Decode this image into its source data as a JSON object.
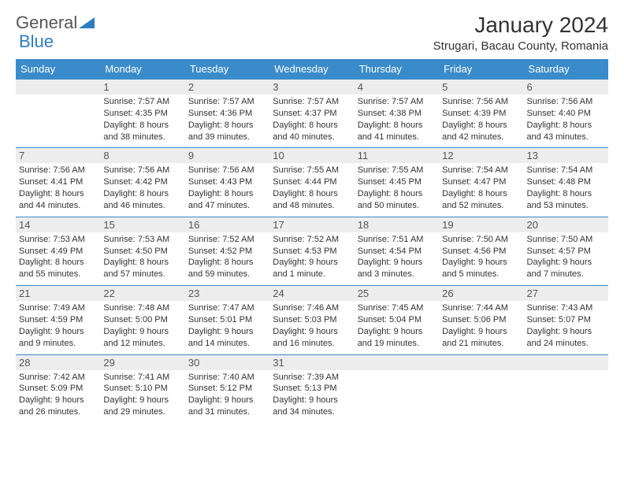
{
  "logo": {
    "text_general": "General",
    "text_blue": "Blue"
  },
  "title": "January 2024",
  "location": "Strugari, Bacau County, Romania",
  "colors": {
    "header_bg": "#3a8bc9",
    "header_text": "#ffffff",
    "daynum_bg": "#ededed",
    "row_border": "#3a8bc9",
    "logo_blue": "#2e7cc0"
  },
  "weekdays": [
    "Sunday",
    "Monday",
    "Tuesday",
    "Wednesday",
    "Thursday",
    "Friday",
    "Saturday"
  ],
  "weeks": [
    [
      null,
      {
        "n": "1",
        "sunrise": "Sunrise: 7:57 AM",
        "sunset": "Sunset: 4:35 PM",
        "daylight": "Daylight: 8 hours and 38 minutes."
      },
      {
        "n": "2",
        "sunrise": "Sunrise: 7:57 AM",
        "sunset": "Sunset: 4:36 PM",
        "daylight": "Daylight: 8 hours and 39 minutes."
      },
      {
        "n": "3",
        "sunrise": "Sunrise: 7:57 AM",
        "sunset": "Sunset: 4:37 PM",
        "daylight": "Daylight: 8 hours and 40 minutes."
      },
      {
        "n": "4",
        "sunrise": "Sunrise: 7:57 AM",
        "sunset": "Sunset: 4:38 PM",
        "daylight": "Daylight: 8 hours and 41 minutes."
      },
      {
        "n": "5",
        "sunrise": "Sunrise: 7:56 AM",
        "sunset": "Sunset: 4:39 PM",
        "daylight": "Daylight: 8 hours and 42 minutes."
      },
      {
        "n": "6",
        "sunrise": "Sunrise: 7:56 AM",
        "sunset": "Sunset: 4:40 PM",
        "daylight": "Daylight: 8 hours and 43 minutes."
      }
    ],
    [
      {
        "n": "7",
        "sunrise": "Sunrise: 7:56 AM",
        "sunset": "Sunset: 4:41 PM",
        "daylight": "Daylight: 8 hours and 44 minutes."
      },
      {
        "n": "8",
        "sunrise": "Sunrise: 7:56 AM",
        "sunset": "Sunset: 4:42 PM",
        "daylight": "Daylight: 8 hours and 46 minutes."
      },
      {
        "n": "9",
        "sunrise": "Sunrise: 7:56 AM",
        "sunset": "Sunset: 4:43 PM",
        "daylight": "Daylight: 8 hours and 47 minutes."
      },
      {
        "n": "10",
        "sunrise": "Sunrise: 7:55 AM",
        "sunset": "Sunset: 4:44 PM",
        "daylight": "Daylight: 8 hours and 48 minutes."
      },
      {
        "n": "11",
        "sunrise": "Sunrise: 7:55 AM",
        "sunset": "Sunset: 4:45 PM",
        "daylight": "Daylight: 8 hours and 50 minutes."
      },
      {
        "n": "12",
        "sunrise": "Sunrise: 7:54 AM",
        "sunset": "Sunset: 4:47 PM",
        "daylight": "Daylight: 8 hours and 52 minutes."
      },
      {
        "n": "13",
        "sunrise": "Sunrise: 7:54 AM",
        "sunset": "Sunset: 4:48 PM",
        "daylight": "Daylight: 8 hours and 53 minutes."
      }
    ],
    [
      {
        "n": "14",
        "sunrise": "Sunrise: 7:53 AM",
        "sunset": "Sunset: 4:49 PM",
        "daylight": "Daylight: 8 hours and 55 minutes."
      },
      {
        "n": "15",
        "sunrise": "Sunrise: 7:53 AM",
        "sunset": "Sunset: 4:50 PM",
        "daylight": "Daylight: 8 hours and 57 minutes."
      },
      {
        "n": "16",
        "sunrise": "Sunrise: 7:52 AM",
        "sunset": "Sunset: 4:52 PM",
        "daylight": "Daylight: 8 hours and 59 minutes."
      },
      {
        "n": "17",
        "sunrise": "Sunrise: 7:52 AM",
        "sunset": "Sunset: 4:53 PM",
        "daylight": "Daylight: 9 hours and 1 minute."
      },
      {
        "n": "18",
        "sunrise": "Sunrise: 7:51 AM",
        "sunset": "Sunset: 4:54 PM",
        "daylight": "Daylight: 9 hours and 3 minutes."
      },
      {
        "n": "19",
        "sunrise": "Sunrise: 7:50 AM",
        "sunset": "Sunset: 4:56 PM",
        "daylight": "Daylight: 9 hours and 5 minutes."
      },
      {
        "n": "20",
        "sunrise": "Sunrise: 7:50 AM",
        "sunset": "Sunset: 4:57 PM",
        "daylight": "Daylight: 9 hours and 7 minutes."
      }
    ],
    [
      {
        "n": "21",
        "sunrise": "Sunrise: 7:49 AM",
        "sunset": "Sunset: 4:59 PM",
        "daylight": "Daylight: 9 hours and 9 minutes."
      },
      {
        "n": "22",
        "sunrise": "Sunrise: 7:48 AM",
        "sunset": "Sunset: 5:00 PM",
        "daylight": "Daylight: 9 hours and 12 minutes."
      },
      {
        "n": "23",
        "sunrise": "Sunrise: 7:47 AM",
        "sunset": "Sunset: 5:01 PM",
        "daylight": "Daylight: 9 hours and 14 minutes."
      },
      {
        "n": "24",
        "sunrise": "Sunrise: 7:46 AM",
        "sunset": "Sunset: 5:03 PM",
        "daylight": "Daylight: 9 hours and 16 minutes."
      },
      {
        "n": "25",
        "sunrise": "Sunrise: 7:45 AM",
        "sunset": "Sunset: 5:04 PM",
        "daylight": "Daylight: 9 hours and 19 minutes."
      },
      {
        "n": "26",
        "sunrise": "Sunrise: 7:44 AM",
        "sunset": "Sunset: 5:06 PM",
        "daylight": "Daylight: 9 hours and 21 minutes."
      },
      {
        "n": "27",
        "sunrise": "Sunrise: 7:43 AM",
        "sunset": "Sunset: 5:07 PM",
        "daylight": "Daylight: 9 hours and 24 minutes."
      }
    ],
    [
      {
        "n": "28",
        "sunrise": "Sunrise: 7:42 AM",
        "sunset": "Sunset: 5:09 PM",
        "daylight": "Daylight: 9 hours and 26 minutes."
      },
      {
        "n": "29",
        "sunrise": "Sunrise: 7:41 AM",
        "sunset": "Sunset: 5:10 PM",
        "daylight": "Daylight: 9 hours and 29 minutes."
      },
      {
        "n": "30",
        "sunrise": "Sunrise: 7:40 AM",
        "sunset": "Sunset: 5:12 PM",
        "daylight": "Daylight: 9 hours and 31 minutes."
      },
      {
        "n": "31",
        "sunrise": "Sunrise: 7:39 AM",
        "sunset": "Sunset: 5:13 PM",
        "daylight": "Daylight: 9 hours and 34 minutes."
      },
      null,
      null,
      null
    ]
  ]
}
